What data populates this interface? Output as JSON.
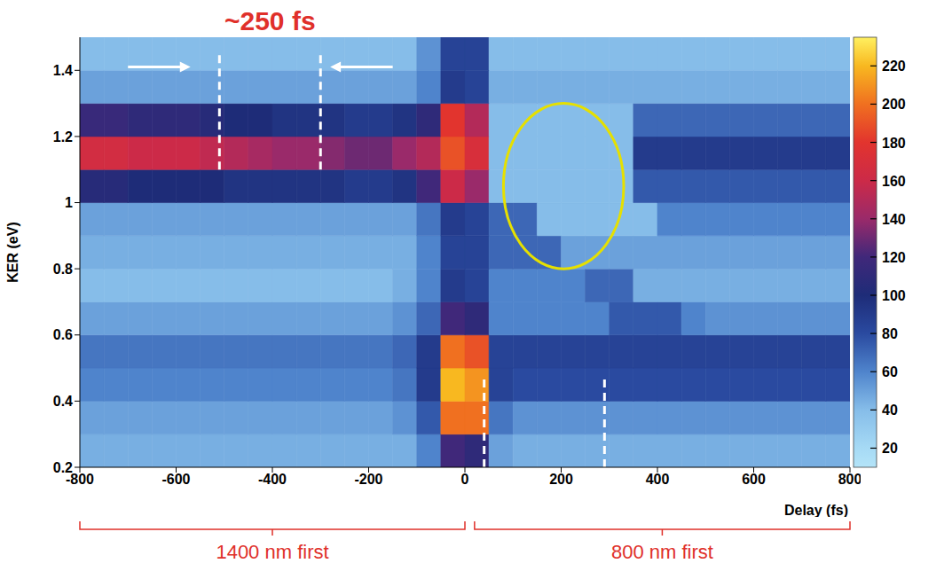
{
  "chart_data": {
    "type": "heatmap",
    "title": "~250 fs",
    "x_label": "Delay (fs)",
    "y_label": "KER (eV)",
    "grid": false,
    "xlim": [
      -800,
      800
    ],
    "xticks": [
      -800,
      -600,
      -400,
      -200,
      0,
      200,
      400,
      600,
      800
    ],
    "ylim": [
      0.2,
      1.5
    ],
    "yticks": [
      0.2,
      0.4,
      0.6,
      0.8,
      1,
      1.2,
      1.4
    ],
    "x_edges": [
      -800,
      -750,
      -700,
      -650,
      -600,
      -550,
      -500,
      -450,
      -400,
      -350,
      -300,
      -250,
      -200,
      -150,
      -100,
      -50,
      0,
      50,
      100,
      150,
      200,
      250,
      300,
      350,
      400,
      450,
      500,
      550,
      600,
      650,
      700,
      750,
      800
    ],
    "y_edges": [
      0.2,
      0.3,
      0.4,
      0.5,
      0.6,
      0.7,
      0.8,
      0.9,
      1.0,
      1.1,
      1.2,
      1.3,
      1.4,
      1.5
    ],
    "cells": [
      [
        45,
        45,
        45,
        45,
        45,
        45,
        45,
        45,
        45,
        45,
        45,
        45,
        45,
        45,
        60,
        120,
        110,
        50,
        45,
        45,
        45,
        45,
        45,
        45,
        45,
        45,
        45,
        45,
        45,
        45,
        45,
        45
      ],
      [
        50,
        50,
        50,
        50,
        50,
        50,
        50,
        50,
        50,
        50,
        50,
        50,
        50,
        55,
        75,
        200,
        200,
        65,
        55,
        55,
        55,
        55,
        55,
        55,
        55,
        55,
        55,
        55,
        55,
        55,
        55,
        55
      ],
      [
        60,
        60,
        60,
        60,
        60,
        60,
        60,
        60,
        60,
        60,
        60,
        60,
        60,
        65,
        90,
        220,
        210,
        85,
        80,
        80,
        80,
        80,
        80,
        80,
        80,
        80,
        80,
        80,
        80,
        80,
        80,
        80
      ],
      [
        65,
        65,
        65,
        65,
        65,
        65,
        65,
        65,
        65,
        65,
        65,
        65,
        65,
        70,
        90,
        200,
        190,
        85,
        85,
        85,
        85,
        85,
        85,
        85,
        85,
        85,
        85,
        85,
        85,
        85,
        85,
        85
      ],
      [
        50,
        50,
        50,
        50,
        50,
        50,
        50,
        50,
        50,
        50,
        50,
        50,
        50,
        55,
        70,
        120,
        110,
        60,
        60,
        60,
        60,
        60,
        75,
        75,
        75,
        60,
        55,
        55,
        55,
        55,
        55,
        55
      ],
      [
        40,
        40,
        40,
        40,
        40,
        40,
        40,
        40,
        40,
        40,
        40,
        40,
        40,
        45,
        60,
        90,
        85,
        60,
        60,
        60,
        60,
        70,
        70,
        45,
        45,
        45,
        45,
        45,
        45,
        45,
        45,
        45
      ],
      [
        45,
        45,
        45,
        45,
        45,
        45,
        45,
        45,
        45,
        45,
        45,
        45,
        45,
        45,
        60,
        85,
        85,
        70,
        70,
        70,
        50,
        50,
        50,
        50,
        50,
        50,
        50,
        50,
        50,
        50,
        50,
        50
      ],
      [
        50,
        50,
        50,
        50,
        50,
        50,
        50,
        50,
        50,
        50,
        50,
        50,
        50,
        50,
        65,
        90,
        85,
        70,
        70,
        40,
        40,
        40,
        40,
        40,
        60,
        60,
        60,
        60,
        60,
        60,
        60,
        60
      ],
      [
        105,
        105,
        100,
        100,
        100,
        100,
        95,
        95,
        95,
        95,
        95,
        90,
        90,
        95,
        120,
        160,
        140,
        40,
        40,
        40,
        40,
        40,
        40,
        75,
        75,
        75,
        75,
        75,
        75,
        75,
        75,
        75
      ],
      [
        165,
        165,
        160,
        160,
        160,
        155,
        150,
        145,
        140,
        140,
        135,
        130,
        130,
        140,
        150,
        190,
        170,
        40,
        40,
        40,
        40,
        40,
        40,
        90,
        90,
        90,
        90,
        90,
        90,
        90,
        90,
        90
      ],
      [
        115,
        115,
        110,
        110,
        110,
        105,
        100,
        100,
        95,
        95,
        95,
        90,
        90,
        95,
        110,
        180,
        150,
        40,
        40,
        40,
        40,
        40,
        40,
        70,
        70,
        70,
        70,
        70,
        70,
        70,
        70,
        70
      ],
      [
        50,
        50,
        50,
        50,
        50,
        50,
        50,
        50,
        50,
        50,
        50,
        50,
        50,
        50,
        60,
        90,
        85,
        45,
        45,
        45,
        45,
        45,
        45,
        45,
        45,
        45,
        45,
        45,
        45,
        45,
        45,
        45
      ],
      [
        40,
        40,
        40,
        40,
        40,
        40,
        40,
        40,
        40,
        40,
        40,
        40,
        40,
        40,
        55,
        85,
        85,
        40,
        40,
        40,
        40,
        40,
        40,
        40,
        40,
        40,
        40,
        40,
        40,
        40,
        40,
        40
      ]
    ],
    "colorbar": {
      "range": [
        10,
        235
      ],
      "ticks": [
        20,
        40,
        60,
        80,
        100,
        120,
        140,
        160,
        180,
        200,
        220
      ]
    },
    "dashed_lines": [
      {
        "x": -510,
        "y": [
          1.1,
          1.45
        ]
      },
      {
        "x": -300,
        "y": [
          1.1,
          1.45
        ]
      },
      {
        "x": 40,
        "y": [
          0.2,
          0.47
        ]
      },
      {
        "x": 290,
        "y": [
          0.2,
          0.47
        ]
      }
    ],
    "arrows": [
      {
        "x": [
          -700,
          -570
        ],
        "y": 1.41
      },
      {
        "x": -150,
        "y_dummy": null,
        "x_to": -280
      }
    ],
    "ellipse": {
      "x": 205,
      "y": 1.05,
      "rx": 125,
      "ry": 0.25
    },
    "regions": [
      {
        "label": "1400 nm first",
        "x": [
          -800,
          0
        ]
      },
      {
        "label": "800 nm first",
        "x": [
          20,
          800
        ]
      }
    ]
  }
}
